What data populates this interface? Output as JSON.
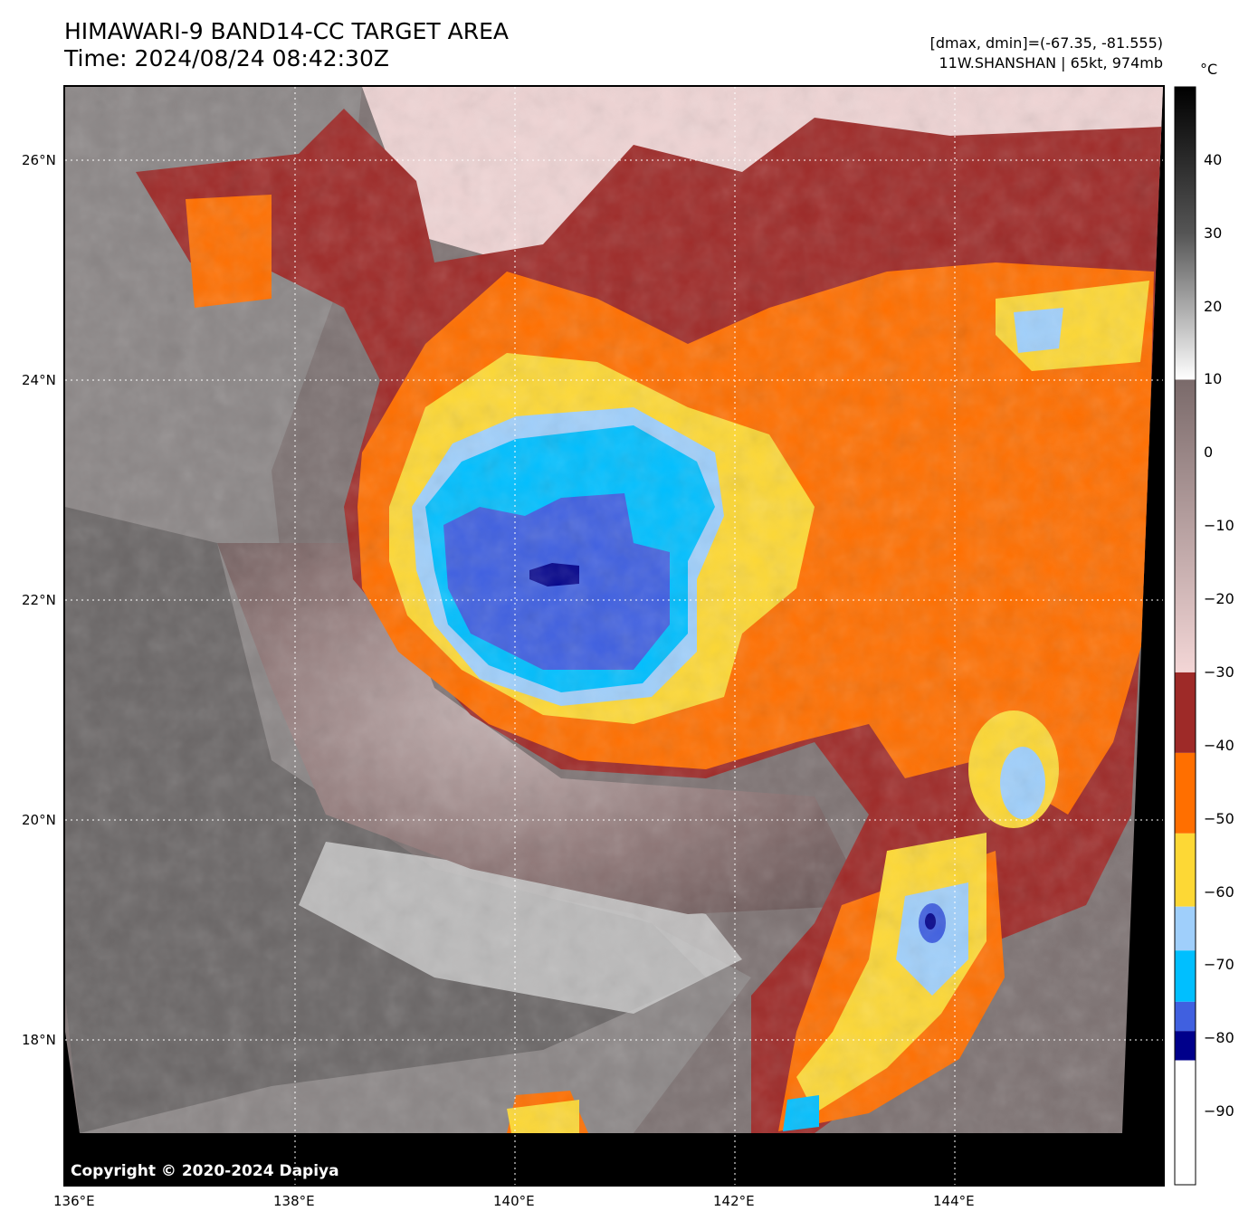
{
  "header": {
    "title_line1": "HIMAWARI-9 BAND14-CC TARGET AREA",
    "title_line2": "Time: 2024/08/24 08:42:30Z",
    "range_text": "[dmax, dmin]=(-67.35, -81.555)",
    "storm_text": "11W.SHANSHAN | 65kt, 974mb"
  },
  "colorbar": {
    "unit": "°C",
    "ticks": [
      "40",
      "30",
      "20",
      "10",
      "0",
      "−10",
      "−20",
      "−30",
      "−40",
      "−50",
      "−60",
      "−70",
      "−80",
      "−90"
    ],
    "tick_values": [
      40,
      30,
      20,
      10,
      0,
      -10,
      -20,
      -30,
      -40,
      -50,
      -60,
      -70,
      -80,
      -90
    ],
    "range": [
      -100,
      50
    ],
    "colors": {
      "hot": "#000000",
      "warm_gray": "#7a6a6a",
      "pink": "#f3d6d6",
      "dark_red": "#9e2a28",
      "orange": "#ff6f00",
      "yellow": "#fdd835",
      "light_blue": "#9fcffb",
      "cyan": "#00bfff",
      "blue": "#4060e0",
      "navy": "#00008b",
      "white": "#ffffff"
    }
  },
  "axes": {
    "lat_labels": [
      "26°N",
      "24°N",
      "22°N",
      "20°N",
      "18°N"
    ],
    "lat_values": [
      26,
      24,
      22,
      20,
      18
    ],
    "lon_labels": [
      "136°E",
      "138°E",
      "140°E",
      "142°E",
      "144°E"
    ],
    "lon_values": [
      136,
      138,
      140,
      142,
      144
    ]
  },
  "copyright": "Copyright © 2020-2024 Dapiya"
}
